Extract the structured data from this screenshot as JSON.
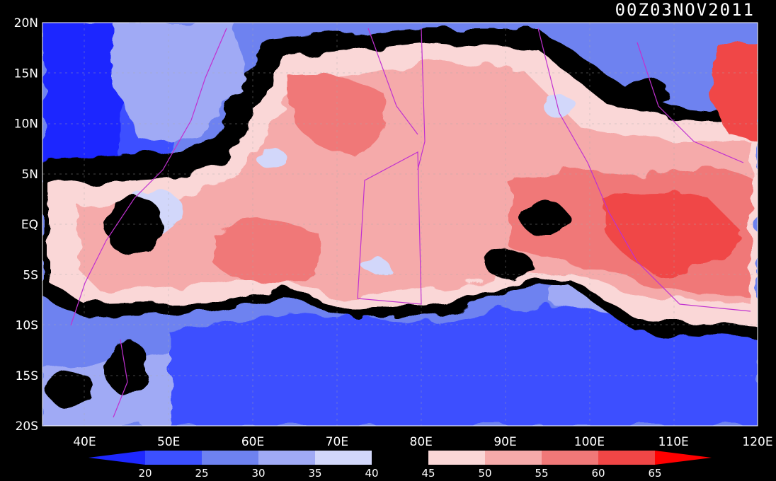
{
  "map": {
    "timestamp": "00Z03NOV2011",
    "lat_labels": [
      "20N",
      "15N",
      "10N",
      "5N",
      "EQ",
      "5S",
      "10S",
      "15S",
      "20S"
    ],
    "lon_labels": [
      "40E",
      "50E",
      "60E",
      "70E",
      "80E",
      "90E",
      "100E",
      "110E",
      "120E"
    ],
    "lon_range": [
      35,
      120
    ],
    "lat_range": [
      -20,
      20
    ]
  },
  "colorbar": {
    "levels": [
      "20",
      "25",
      "30",
      "35",
      "40",
      "45",
      "50",
      "55",
      "60",
      "65"
    ],
    "colors": [
      "#1e28ff",
      "#3c50ff",
      "#6e82f0",
      "#a0aaf5",
      "#d2d7fa",
      "#000000",
      "#fad7d7",
      "#f5aaaa",
      "#f07878",
      "#f04646",
      "#ff0000"
    ]
  }
}
